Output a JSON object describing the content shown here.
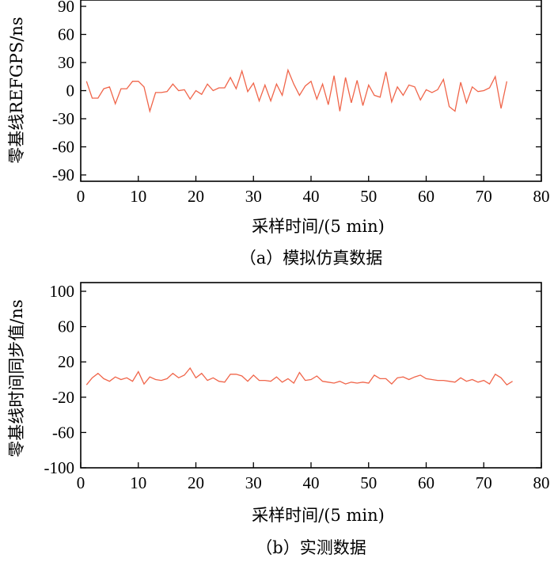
{
  "chart_data": [
    {
      "type": "line",
      "caption": "（a）模拟仿真数据",
      "xlabel": "采样时间/(5 min)",
      "ylabel": "零基线REFGPS/ns",
      "xlim": [
        0,
        80
      ],
      "ylim": [
        -90,
        90
      ],
      "xticks": [
        0,
        10,
        20,
        30,
        40,
        50,
        60,
        70,
        80
      ],
      "yticks": [
        90,
        60,
        30,
        0,
        -30,
        -60,
        -90
      ],
      "line_color": "#f0654a",
      "series": [
        {
          "x": [
            1,
            2,
            3,
            4,
            5,
            6,
            7,
            8,
            9,
            10,
            11,
            12,
            13,
            14,
            15,
            16,
            17,
            18,
            19,
            20,
            21,
            22,
            23,
            24,
            25,
            26,
            27,
            28,
            29,
            30,
            31,
            32,
            33,
            34,
            35,
            36,
            37,
            38,
            39,
            40,
            41,
            42,
            43,
            44,
            45,
            46,
            47,
            48,
            49,
            50,
            51,
            52,
            53,
            54,
            55,
            56,
            57,
            58,
            59,
            60,
            61,
            62,
            63,
            64,
            65,
            66,
            67,
            68,
            69,
            70,
            71,
            72,
            73,
            74
          ],
          "values": [
            10,
            -8,
            -8,
            2,
            4,
            -14,
            2,
            2,
            10,
            10,
            4,
            -22,
            -2,
            -2,
            -1,
            7,
            0,
            1,
            -9,
            0,
            -4,
            7,
            0,
            3,
            3,
            14,
            2,
            21,
            -1,
            8,
            -11,
            6,
            -11,
            7,
            -5,
            22,
            7,
            -5,
            5,
            10,
            -9,
            7,
            -15,
            16,
            -22,
            14,
            -13,
            11,
            -16,
            6,
            -5,
            -7,
            20,
            -12,
            4,
            -5,
            6,
            4,
            -10,
            1,
            -2,
            1,
            12,
            -17,
            -22,
            9,
            -13,
            4,
            -1,
            0,
            3,
            15,
            -19,
            10
          ]
        }
      ]
    },
    {
      "type": "line",
      "caption": "（b）实测数据",
      "xlabel": "采样时间/(5 min)",
      "ylabel": "零基线时间同步值/ns",
      "xlim": [
        0,
        80
      ],
      "ylim": [
        -100,
        100
      ],
      "xticks": [
        0,
        10,
        20,
        30,
        40,
        50,
        60,
        70,
        80
      ],
      "yticks": [
        100,
        60,
        20,
        -20,
        -60,
        -100
      ],
      "line_color": "#f0654a",
      "series": [
        {
          "x": [
            1,
            2,
            3,
            4,
            5,
            6,
            7,
            8,
            9,
            10,
            11,
            12,
            13,
            14,
            15,
            16,
            17,
            18,
            19,
            20,
            21,
            22,
            23,
            24,
            25,
            26,
            27,
            28,
            29,
            30,
            31,
            32,
            33,
            34,
            35,
            36,
            37,
            38,
            39,
            40,
            41,
            42,
            43,
            44,
            45,
            46,
            47,
            48,
            49,
            50,
            51,
            52,
            53,
            54,
            55,
            56,
            57,
            58,
            59,
            60,
            61,
            62,
            63,
            64,
            65,
            66,
            67,
            68,
            69,
            70,
            71,
            72,
            73,
            74,
            75
          ],
          "values": [
            -6,
            2,
            7,
            1,
            -2,
            3,
            0,
            2,
            -2,
            9,
            -5,
            3,
            0,
            -1,
            1,
            7,
            2,
            5,
            13,
            2,
            7,
            -1,
            2,
            -2,
            -3,
            6,
            6,
            4,
            -2,
            5,
            -1,
            -1,
            -2,
            3,
            -3,
            1,
            -4,
            8,
            -1,
            0,
            4,
            -2,
            -3,
            -4,
            -2,
            -5,
            -3,
            -4,
            -3,
            -4,
            5,
            1,
            1,
            -5,
            2,
            3,
            0,
            3,
            5,
            1,
            0,
            -1,
            -1,
            -2,
            -3,
            2,
            -2,
            0,
            -3,
            -1,
            -5,
            6,
            2,
            -6,
            -2
          ]
        }
      ]
    }
  ]
}
